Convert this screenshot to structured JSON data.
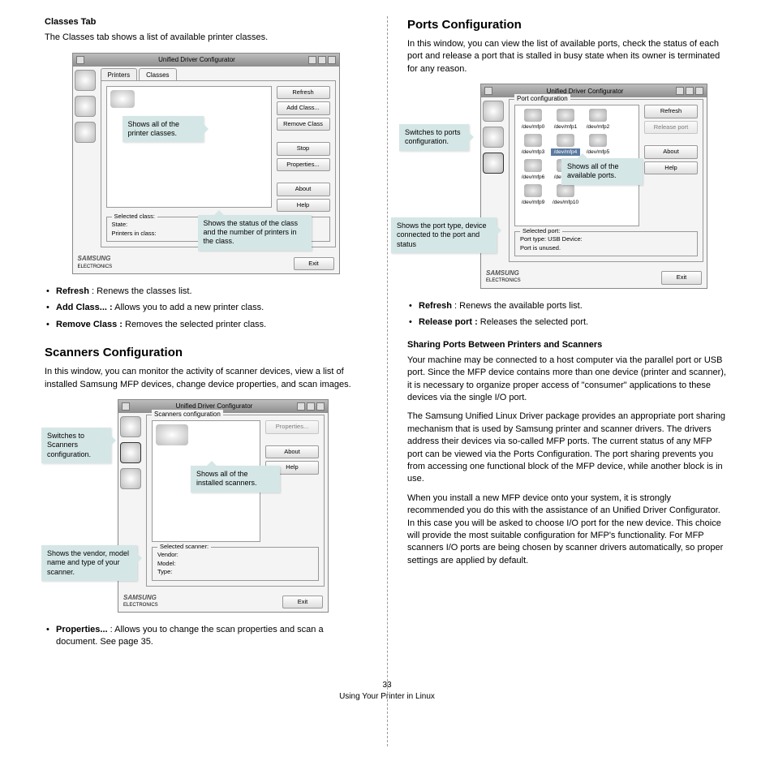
{
  "page_number": "33",
  "footer_text": "Using Your Printer in Linux",
  "left": {
    "classes_heading": "Classes Tab",
    "classes_intro": "The Classes tab shows a list of available printer classes.",
    "classes_bullets": {
      "refresh_label": "Refresh",
      "refresh_desc": " : Renews the classes list.",
      "add_label": "Add Class... :",
      "add_desc": " Allows you to add a new printer class.",
      "remove_label": "Remove Class :",
      "remove_desc": " Removes the selected printer class."
    },
    "scanners_heading": "Scanners Configuration",
    "scanners_intro": "In this window, you can monitor the activity of scanner devices, view a list of installed Samsung MFP devices, change device properties, and scan images.",
    "scanners_bullet_label": "Properties...",
    "scanners_bullet_desc": " : Allows you to change the scan properties and scan a document. See page 35.",
    "fig1": {
      "window_title": "Unified Driver Configurator",
      "tab1": "Printers",
      "tab2": "Classes",
      "group": "Printers configuration",
      "buttons": [
        "Refresh",
        "Add Class...",
        "Remove Class",
        "Stop",
        "Properties...",
        "About",
        "Help"
      ],
      "status_title": "Selected class:",
      "status_line1": "State:",
      "status_line2": "Printers in class:",
      "exit": "Exit",
      "callout1": "Shows all of the printer classes.",
      "callout2": "Shows the status of the class and the number of printers in the class."
    },
    "fig2": {
      "window_title": "Unified Driver Configurator",
      "group": "Scanners configuration",
      "buttons": [
        "Properties...",
        "About",
        "Help"
      ],
      "status_title": "Selected scanner:",
      "status_line1": "Vendor:",
      "status_line2": "Model:",
      "status_line3": "Type:",
      "exit": "Exit",
      "callout1": "Switches to Scanners configuration.",
      "callout2": "Shows all of the installed scanners.",
      "callout3": "Shows the vendor, model name and type of your scanner."
    }
  },
  "right": {
    "ports_heading": "Ports Configuration",
    "ports_intro": "In this window, you can view the list of available ports, check the status of each port and release a port that is stalled in busy state when its owner is terminated for any reason.",
    "ports_bullets": {
      "refresh_label": "Refresh",
      "refresh_desc": " : Renews the available ports list.",
      "release_label": "Release port :",
      "release_desc": " Releases the selected port."
    },
    "sharing_heading": "Sharing Ports Between Printers and Scanners",
    "sharing_p1": "Your machine may be connected to a host computer via the parallel port or USB port. Since the MFP device contains more than one device (printer and scanner), it is necessary to organize proper access of \"consumer\" applications to these devices via the single I/O port.",
    "sharing_p2": "The Samsung Unified Linux Driver package provides an appropriate port sharing mechanism that is used by Samsung printer and scanner drivers. The drivers address their devices via so-called MFP ports. The current status of any MFP port can be viewed via the Ports Configuration. The port sharing prevents you from accessing one functional block of the MFP device, while another block is in use.",
    "sharing_p3": "When you install a new MFP device onto your system, it is strongly recommended you do this with the assistance of an Unified Driver Configurator. In this case you will be asked to choose I/O port for the new device. This choice will provide the most suitable configuration for MFP's functionality. For MFP scanners I/O ports are being chosen by scanner drivers automatically, so proper settings are applied by default.",
    "fig3": {
      "window_title": "Unified Driver Configurator",
      "group": "Port configuration",
      "buttons": [
        "Refresh",
        "Release port",
        "About",
        "Help"
      ],
      "ports": [
        "/dev/mfp0",
        "/dev/mfp1",
        "/dev/mfp2",
        "/dev/mfp3",
        "/dev/mfp4",
        "/dev/mfp5",
        "/dev/mfp6",
        "/dev/mfp7",
        "/dev/mfp8",
        "/dev/mfp9",
        "/dev/mfp10"
      ],
      "status_title": "Selected port:",
      "status_line1": "Port type: USB   Device:",
      "status_line2": "Port is unused.",
      "exit": "Exit",
      "callout1": "Switches to ports configuration.",
      "callout2": "Shows all of the available ports.",
      "callout3": "Shows the port type, device connected to the port and status"
    }
  }
}
